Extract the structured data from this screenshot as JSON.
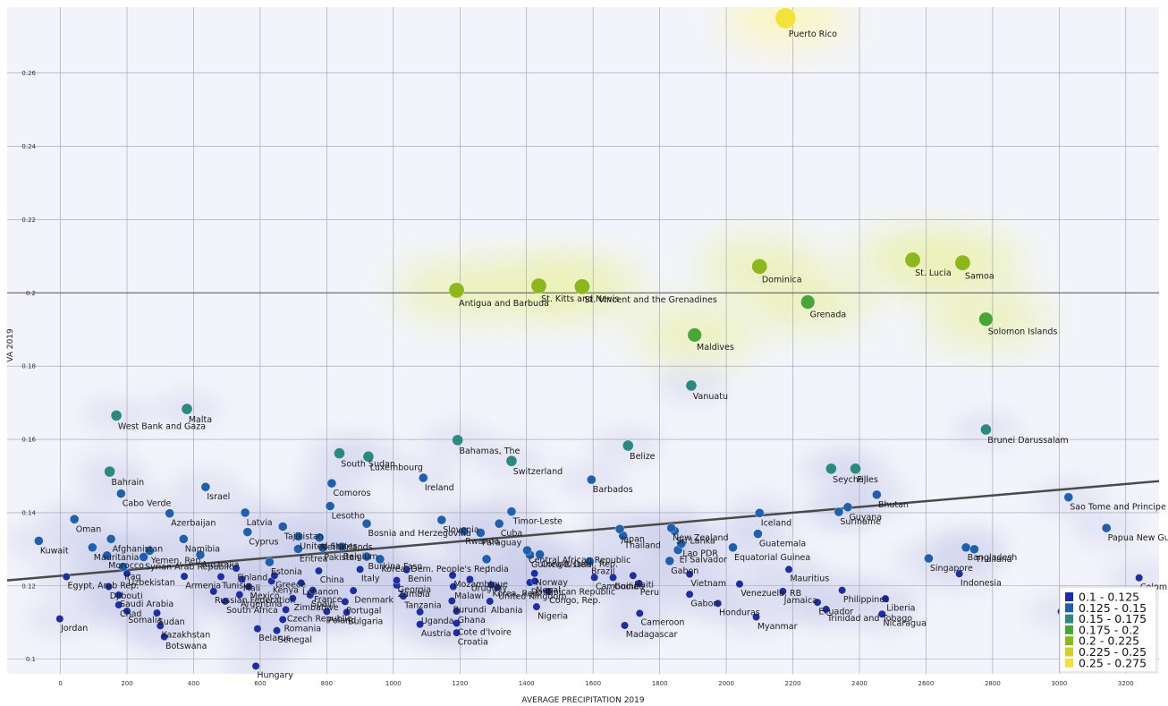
{
  "chart_data": {
    "type": "scatter",
    "title": "",
    "xlabel": "AVERAGE PRECIPITATION 2019",
    "ylabel": "VA 2019",
    "xlim": [
      -160,
      3300
    ],
    "ylim": [
      0.096,
      0.278
    ],
    "x_ticks": [
      0,
      200,
      400,
      600,
      800,
      1000,
      1200,
      1400,
      1600,
      1800,
      2000,
      2200,
      2400,
      2600,
      2800,
      3000,
      3200
    ],
    "y_ticks": [
      0.1,
      0.12,
      0.14,
      0.16,
      0.18,
      0.2,
      0.22,
      0.24,
      0.26
    ],
    "y_tick_labels": [
      "0.1",
      "0.12",
      "0.14",
      "0.16",
      "0.18",
      "0.2",
      "0.22",
      "0.24",
      "0.26"
    ],
    "grid": true,
    "reference_line_y": 0.2,
    "trendline": {
      "x": [
        -160,
        3300
      ],
      "y": [
        0.1215,
        0.1486
      ]
    },
    "legend": {
      "position": "bottom-right",
      "bins": [
        {
          "label": "0.1 - 0.125",
          "color": "#1c2ea6"
        },
        {
          "label": "0.125 - 0.15",
          "color": "#1f5fae"
        },
        {
          "label": "0.15 - 0.175",
          "color": "#2b8a80"
        },
        {
          "label": "0.175 - 0.2",
          "color": "#46a63a"
        },
        {
          "label": "0.2 - 0.225",
          "color": "#8cb81e"
        },
        {
          "label": "0.225 - 0.25",
          "color": "#d0d22a"
        },
        {
          "label": "0.25 - 0.275",
          "color": "#f2e23a"
        }
      ]
    },
    "points": [
      {
        "label": "Puerto Rico",
        "x": 2178,
        "y": 0.275
      },
      {
        "label": "Antigua and Barbuda",
        "x": 1190,
        "y": 0.2007
      },
      {
        "label": "St. Kitts and Nevis",
        "x": 1437,
        "y": 0.2019
      },
      {
        "label": "St. Vincent and the Grenadines",
        "x": 1567,
        "y": 0.2017
      },
      {
        "label": "Dominica",
        "x": 2100,
        "y": 0.2072
      },
      {
        "label": "St. Lucia",
        "x": 2560,
        "y": 0.209
      },
      {
        "label": "Samoa",
        "x": 2710,
        "y": 0.2082
      },
      {
        "label": "Grenada",
        "x": 2245,
        "y": 0.1975
      },
      {
        "label": "Solomon Islands",
        "x": 2780,
        "y": 0.1928
      },
      {
        "label": "Maldives",
        "x": 1905,
        "y": 0.1885
      },
      {
        "label": "Vanuatu",
        "x": 1895,
        "y": 0.1747
      },
      {
        "label": "Malta",
        "x": 380,
        "y": 0.1683
      },
      {
        "label": "West Bank and Gaza",
        "x": 168,
        "y": 0.1665
      },
      {
        "label": "Brunei Darussalam",
        "x": 2780,
        "y": 0.1627
      },
      {
        "label": "Bahamas, The",
        "x": 1193,
        "y": 0.1598
      },
      {
        "label": "Belize",
        "x": 1705,
        "y": 0.1583
      },
      {
        "label": "South Sudan",
        "x": 838,
        "y": 0.1562
      },
      {
        "label": "Luxembourg",
        "x": 925,
        "y": 0.1553
      },
      {
        "label": "Switzerland",
        "x": 1355,
        "y": 0.1541
      },
      {
        "label": "Seychelles",
        "x": 2315,
        "y": 0.152
      },
      {
        "label": "Fiji",
        "x": 2388,
        "y": 0.152
      },
      {
        "label": "Bahrain",
        "x": 148,
        "y": 0.1512
      },
      {
        "label": "Ireland",
        "x": 1090,
        "y": 0.1495
      },
      {
        "label": "Barbados",
        "x": 1595,
        "y": 0.149
      },
      {
        "label": "Comoros",
        "x": 815,
        "y": 0.148
      },
      {
        "label": "Israel",
        "x": 436,
        "y": 0.147
      },
      {
        "label": "Cabo Verde",
        "x": 182,
        "y": 0.1452
      },
      {
        "label": "Bhutan",
        "x": 2452,
        "y": 0.1449
      },
      {
        "label": "Sao Tome and Principe",
        "x": 3028,
        "y": 0.1442
      },
      {
        "label": "Guyana",
        "x": 2365,
        "y": 0.1415
      },
      {
        "label": "Suriname",
        "x": 2338,
        "y": 0.1402
      },
      {
        "label": "Timor-Leste",
        "x": 1355,
        "y": 0.1403
      },
      {
        "label": "Iceland",
        "x": 2100,
        "y": 0.1399
      },
      {
        "label": "Azerbaijan",
        "x": 328,
        "y": 0.1398
      },
      {
        "label": "Lesotho",
        "x": 810,
        "y": 0.1418
      },
      {
        "label": "Latvia",
        "x": 555,
        "y": 0.14
      },
      {
        "label": "Oman",
        "x": 42,
        "y": 0.1382
      },
      {
        "label": "Bosnia and Herzegovina",
        "x": 920,
        "y": 0.137
      },
      {
        "label": "Slovenia",
        "x": 1145,
        "y": 0.138
      },
      {
        "label": "Cuba",
        "x": 1318,
        "y": 0.137
      },
      {
        "label": "Japan",
        "x": 1680,
        "y": 0.1355
      },
      {
        "label": "New Zealand",
        "x": 1835,
        "y": 0.1358
      },
      {
        "label": "Guatemala",
        "x": 2095,
        "y": 0.1342
      },
      {
        "label": "Papua New Guinea",
        "x": 3142,
        "y": 0.1358
      },
      {
        "label": "Cyprus",
        "x": 562,
        "y": 0.1347
      },
      {
        "label": "Tajikistan",
        "x": 668,
        "y": 0.1362
      },
      {
        "label": "Kuwait",
        "x": -65,
        "y": 0.1323
      },
      {
        "label": "Rwanda",
        "x": 1212,
        "y": 0.1349
      },
      {
        "label": "Paraguay",
        "x": 1262,
        "y": 0.1345
      },
      {
        "label": "Sri Lanka",
        "x": 1845,
        "y": 0.135
      },
      {
        "label": "Thailand",
        "x": 1690,
        "y": 0.1337
      },
      {
        "label": "Netherlands",
        "x": 778,
        "y": 0.1332
      },
      {
        "label": "Afghanistan",
        "x": 152,
        "y": 0.1328
      },
      {
        "label": "Namibia",
        "x": 370,
        "y": 0.1328
      },
      {
        "label": "Belgium",
        "x": 845,
        "y": 0.1307
      },
      {
        "label": "United States",
        "x": 715,
        "y": 0.1335
      },
      {
        "label": "Central African Republic",
        "x": 1402,
        "y": 0.1297
      },
      {
        "label": "Bangladesh",
        "x": 2720,
        "y": 0.1305
      },
      {
        "label": "Thailand (2)",
        "x": 2745,
        "y": 0.13
      },
      {
        "label": "Lao PDR",
        "x": 1865,
        "y": 0.1315
      },
      {
        "label": "Equatorial Guinea",
        "x": 2020,
        "y": 0.1305
      },
      {
        "label": "Singapore",
        "x": 2608,
        "y": 0.1275
      },
      {
        "label": "Indonesia",
        "x": 2700,
        "y": 0.1233
      },
      {
        "label": "Mauritania",
        "x": 96,
        "y": 0.1305
      },
      {
        "label": "Syrian Arab Republic",
        "x": 250,
        "y": 0.1279
      },
      {
        "label": "Yemen, Rep.",
        "x": 268,
        "y": 0.1296
      },
      {
        "label": "Morocco",
        "x": 140,
        "y": 0.1283
      },
      {
        "label": "Eritrea",
        "x": 714,
        "y": 0.1301
      },
      {
        "label": "Pakistan",
        "x": 788,
        "y": 0.1304
      },
      {
        "label": "Burkina Faso",
        "x": 920,
        "y": 0.128
      },
      {
        "label": "Korea, Dem. People's Rep.",
        "x": 960,
        "y": 0.1273
      },
      {
        "label": "Guinea-Bissau",
        "x": 1410,
        "y": 0.1285
      },
      {
        "label": "Congo, Dem. Rep.",
        "x": 1440,
        "y": 0.1286
      },
      {
        "label": "El Salvador",
        "x": 1855,
        "y": 0.1298
      },
      {
        "label": "Iraq",
        "x": 188,
        "y": 0.1252
      },
      {
        "label": "Australia",
        "x": 420,
        "y": 0.1285
      },
      {
        "label": "Estonia",
        "x": 628,
        "y": 0.1265
      },
      {
        "label": "Finland",
        "x": 528,
        "y": 0.1248
      },
      {
        "label": "Gabon (2)",
        "x": 1830,
        "y": 0.1268
      },
      {
        "label": "Uzbekistan",
        "x": 200,
        "y": 0.1234
      },
      {
        "label": "Armenia",
        "x": 372,
        "y": 0.1226
      },
      {
        "label": "Tunisia",
        "x": 482,
        "y": 0.1225
      },
      {
        "label": "Kenya",
        "x": 634,
        "y": 0.1213
      },
      {
        "label": "Greece",
        "x": 643,
        "y": 0.1228
      },
      {
        "label": "Mali",
        "x": 545,
        "y": 0.1218
      },
      {
        "label": "Benin",
        "x": 1040,
        "y": 0.1244
      },
      {
        "label": "Mozambique",
        "x": 1178,
        "y": 0.1229
      },
      {
        "label": "India",
        "x": 1280,
        "y": 0.1273
      },
      {
        "label": "China",
        "x": 776,
        "y": 0.1241
      },
      {
        "label": "Italy",
        "x": 900,
        "y": 0.1245
      },
      {
        "label": "Norway",
        "x": 1424,
        "y": 0.1234
      },
      {
        "label": "Nepal",
        "x": 1425,
        "y": 0.1213
      },
      {
        "label": "Georgia",
        "x": 1010,
        "y": 0.1215
      },
      {
        "label": "Brazil",
        "x": 1590,
        "y": 0.1267
      },
      {
        "label": "Cambodia",
        "x": 1604,
        "y": 0.1223
      },
      {
        "label": "Haiti",
        "x": 1720,
        "y": 0.1228
      },
      {
        "label": "Guinea",
        "x": 1660,
        "y": 0.1223
      },
      {
        "label": "Peru",
        "x": 1738,
        "y": 0.1207
      },
      {
        "label": "Vietnam",
        "x": 1890,
        "y": 0.1232
      },
      {
        "label": "Venezuela, RB",
        "x": 2040,
        "y": 0.1205
      },
      {
        "label": "Mauritius",
        "x": 2188,
        "y": 0.1245
      },
      {
        "label": "Jamaica",
        "x": 2170,
        "y": 0.1185
      },
      {
        "label": "Gabon",
        "x": 1890,
        "y": 0.1177
      },
      {
        "label": "Egypt, Arab Rep.",
        "x": 18,
        "y": 0.1225
      },
      {
        "label": "Djibouti",
        "x": 145,
        "y": 0.1198
      },
      {
        "label": "Saudi Arabia",
        "x": 175,
        "y": 0.1175
      },
      {
        "label": "Chad",
        "x": 175,
        "y": 0.1148
      },
      {
        "label": "Somalia",
        "x": 200,
        "y": 0.1131
      },
      {
        "label": "Sudan",
        "x": 290,
        "y": 0.1126
      },
      {
        "label": "Kazakhstan",
        "x": 300,
        "y": 0.1091
      },
      {
        "label": "Botswana",
        "x": 312,
        "y": 0.1061
      },
      {
        "label": "Jordan",
        "x": -2,
        "y": 0.111
      },
      {
        "label": "Russian Federation",
        "x": 460,
        "y": 0.1185
      },
      {
        "label": "South Africa",
        "x": 495,
        "y": 0.1158
      },
      {
        "label": "Argentina",
        "x": 538,
        "y": 0.1176
      },
      {
        "label": "Mexico",
        "x": 566,
        "y": 0.1198
      },
      {
        "label": "Lebanon",
        "x": 723,
        "y": 0.1208
      },
      {
        "label": "Zimbabwe",
        "x": 698,
        "y": 0.1166
      },
      {
        "label": "France",
        "x": 758,
        "y": 0.1188
      },
      {
        "label": "Spain",
        "x": 750,
        "y": 0.1175
      },
      {
        "label": "Czech Republic",
        "x": 677,
        "y": 0.1135
      },
      {
        "label": "Romania",
        "x": 668,
        "y": 0.1108
      },
      {
        "label": "Belarus",
        "x": 592,
        "y": 0.1083
      },
      {
        "label": "Senegal",
        "x": 650,
        "y": 0.1078
      },
      {
        "label": "Portugal",
        "x": 855,
        "y": 0.1157
      },
      {
        "label": "Denmark",
        "x": 880,
        "y": 0.1187
      },
      {
        "label": "Poland",
        "x": 800,
        "y": 0.113
      },
      {
        "label": "Bulgaria",
        "x": 860,
        "y": 0.1128
      },
      {
        "label": "Zambia",
        "x": 1010,
        "y": 0.1202
      },
      {
        "label": "Tanzania",
        "x": 1030,
        "y": 0.1172
      },
      {
        "label": "Uganda",
        "x": 1080,
        "y": 0.1129
      },
      {
        "label": "Ghana",
        "x": 1190,
        "y": 0.1131
      },
      {
        "label": "Malawi",
        "x": 1180,
        "y": 0.1198
      },
      {
        "label": "Burundi",
        "x": 1176,
        "y": 0.1159
      },
      {
        "label": "Albania",
        "x": 1290,
        "y": 0.1158
      },
      {
        "label": "Uruguay",
        "x": 1230,
        "y": 0.1218
      },
      {
        "label": "Korea, Rep.",
        "x": 1294,
        "y": 0.1203
      },
      {
        "label": "United Kingdom",
        "x": 1312,
        "y": 0.1196
      },
      {
        "label": "Dominican Republic",
        "x": 1410,
        "y": 0.1209
      },
      {
        "label": "Congo, Rep.",
        "x": 1465,
        "y": 0.1185
      },
      {
        "label": "Nigeria",
        "x": 1430,
        "y": 0.1143
      },
      {
        "label": "Austria",
        "x": 1080,
        "y": 0.1095
      },
      {
        "label": "Cote d'Ivoire",
        "x": 1190,
        "y": 0.1098
      },
      {
        "label": "Croatia",
        "x": 1190,
        "y": 0.1072
      },
      {
        "label": "Cameroon",
        "x": 1740,
        "y": 0.1125
      },
      {
        "label": "Madagascar",
        "x": 1695,
        "y": 0.1092
      },
      {
        "label": "Honduras",
        "x": 1975,
        "y": 0.1152
      },
      {
        "label": "Myanmar",
        "x": 2090,
        "y": 0.1115
      },
      {
        "label": "Ecuador",
        "x": 2274,
        "y": 0.1155
      },
      {
        "label": "Philippines",
        "x": 2348,
        "y": 0.1188
      },
      {
        "label": "Trinidad and Tobago",
        "x": 2300,
        "y": 0.1136
      },
      {
        "label": "Liberia",
        "x": 2478,
        "y": 0.1165
      },
      {
        "label": "Nicaragua",
        "x": 2468,
        "y": 0.1123
      },
      {
        "label": "Malaysia",
        "x": 3006,
        "y": 0.113
      },
      {
        "label": "Colombia",
        "x": 3240,
        "y": 0.1222
      },
      {
        "label": "Hungary",
        "x": 587,
        "y": 0.0981
      }
    ]
  }
}
